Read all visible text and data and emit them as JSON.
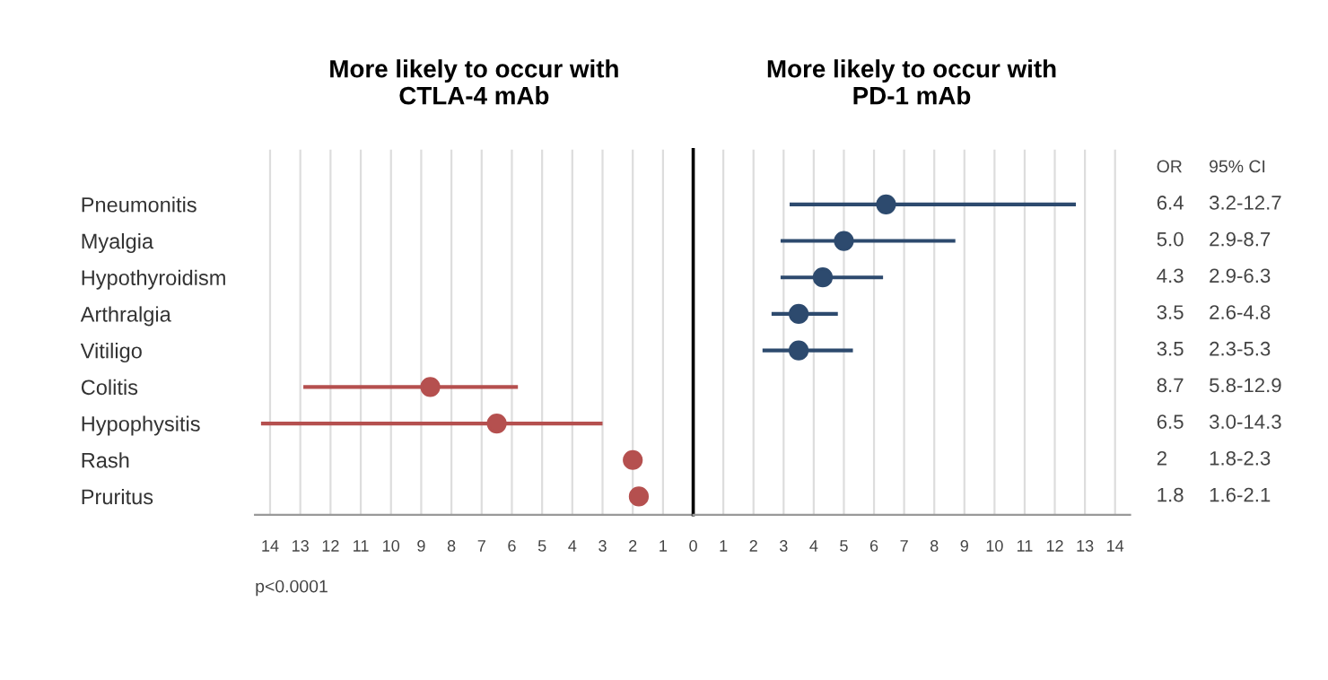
{
  "chart_data": [
    {
      "type": "scatter",
      "orientation": "horizontal",
      "title": "More likely to occur with\nCTLA-4 mAb",
      "categories": [
        "Pneumonitis",
        "Myalgia",
        "Hypothyroidism",
        "Arthralgia",
        "Vitiligo",
        "Colitis",
        "Hypophysitis",
        "Rash",
        "Pruritus"
      ],
      "series": [
        {
          "color": "#b5504f",
          "values": [
            null,
            null,
            null,
            null,
            null,
            8.7,
            6.5,
            2,
            1.8
          ],
          "errors": [
            null,
            null,
            null,
            null,
            null,
            [
              5.8,
              12.9
            ],
            [
              3.0,
              14.3
            ],
            [
              1.8,
              2.3
            ],
            [
              1.6,
              2.1
            ]
          ]
        }
      ],
      "xlim": [
        14.5,
        0
      ],
      "xticks": [
        14,
        13,
        12,
        11,
        10,
        9,
        8,
        7,
        6,
        5,
        4,
        3,
        2,
        1
      ],
      "grid": "x",
      "marker": "circle",
      "annotations": [
        "p<0.0001"
      ]
    },
    {
      "type": "scatter",
      "orientation": "horizontal",
      "title": "More likely to occur with\nPD-1 mAb",
      "series": [
        {
          "color": "#2d4a6e",
          "values": [
            6.4,
            5.0,
            4.3,
            3.5,
            3.5,
            null,
            null,
            null,
            null
          ],
          "errors": [
            [
              3.2,
              12.7
            ],
            [
              2.9,
              8.7
            ],
            [
              2.9,
              6.3
            ],
            [
              2.6,
              4.8
            ],
            [
              2.3,
              5.3
            ],
            null,
            null,
            null,
            null
          ]
        }
      ],
      "xlim": [
        0,
        14.5
      ],
      "xticks": [
        0,
        1,
        2,
        3,
        4,
        5,
        6,
        7,
        8,
        9,
        10,
        11,
        12,
        13,
        14
      ],
      "tick_labels": "x",
      "grid": "x",
      "marker": "circle",
      "annotations": [
        "OR",
        "95% CI",
        "6.4",
        "3.2-12.7",
        "5.0",
        "2.9-8.7",
        "4.3",
        "2.9-6.3",
        "3.5",
        "2.6-4.8",
        "3.5",
        "2.3-5.3",
        "8.7",
        "5.8-12.9",
        "6.5",
        "3.0-14.3",
        "2",
        "1.8-2.3",
        "1.8",
        "1.6-2.1"
      ]
    }
  ]
}
